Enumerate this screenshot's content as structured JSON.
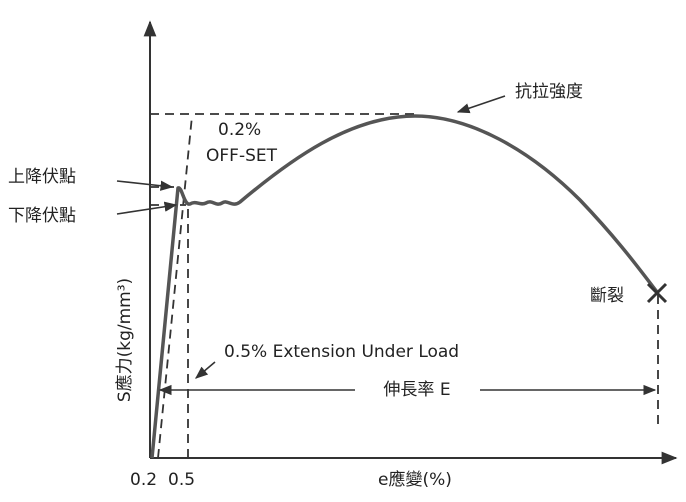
{
  "labels": {
    "tensile_strength": "抗拉強度",
    "upper_yield": "上降伏點",
    "lower_yield": "下降伏點",
    "offset_percent": "0.2%",
    "offset_text": "OFF-SET",
    "fracture": "斷裂",
    "y_axis": "S應力(kg/mm³)",
    "extension": "0.5% Extension Under Load",
    "elongation": "伸長率 E",
    "x_axis": "e應變(%)",
    "x_tick_1": "0.2",
    "x_tick_2": "0.5"
  }
}
